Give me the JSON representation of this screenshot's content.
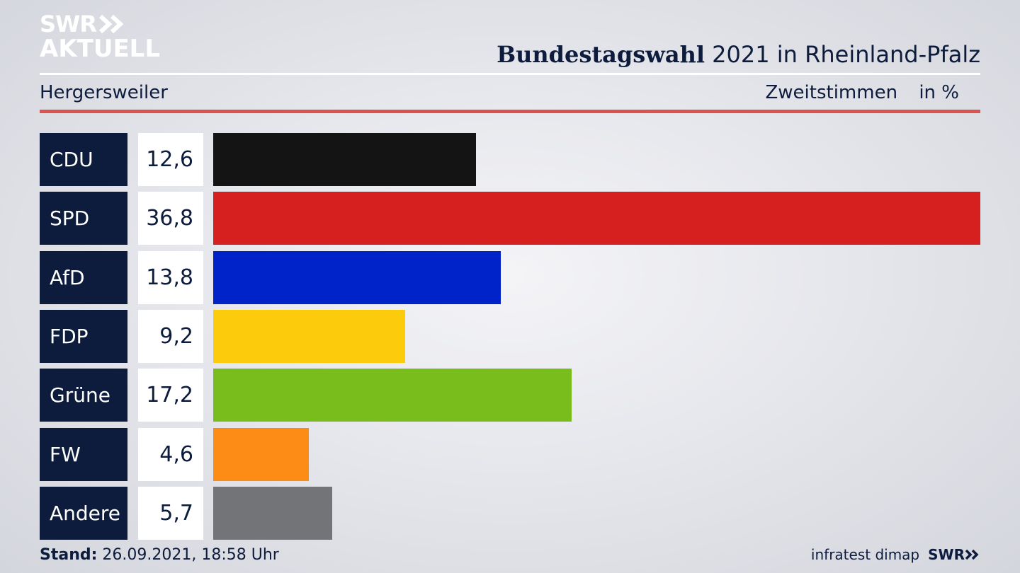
{
  "branding": {
    "logo_line1": "SWR",
    "logo_line2": "AKTUELL",
    "footer_source": "infratest dimap",
    "footer_logo": "SWR"
  },
  "header": {
    "title_bold": "Bundestagswahl",
    "title_rest": "2021 in Rheinland-Pfalz",
    "region": "Hergersweiler",
    "metric": "Zweitstimmen",
    "unit": "in %"
  },
  "footer": {
    "stand_label": "Stand:",
    "stand_value": "26.09.2021, 18:58 Uhr"
  },
  "chart_data": {
    "type": "bar",
    "orientation": "horizontal",
    "categories": [
      "CDU",
      "SPD",
      "AfD",
      "FDP",
      "Grüne",
      "FW",
      "Andere"
    ],
    "values": [
      12.6,
      36.8,
      13.8,
      9.2,
      17.2,
      4.6,
      5.7
    ],
    "value_labels": [
      "12,6",
      "36,8",
      "13,8",
      "9,2",
      "17,2",
      "4,6",
      "5,7"
    ],
    "colors": [
      "#141414",
      "#d62020",
      "#0022c9",
      "#fccb0b",
      "#78bd1c",
      "#fd8c17",
      "#737477"
    ],
    "xlim": [
      0,
      36.8
    ],
    "grid": false
  },
  "colors": {
    "navy": "#0d1c3d",
    "accent_red": "#d9534f"
  }
}
